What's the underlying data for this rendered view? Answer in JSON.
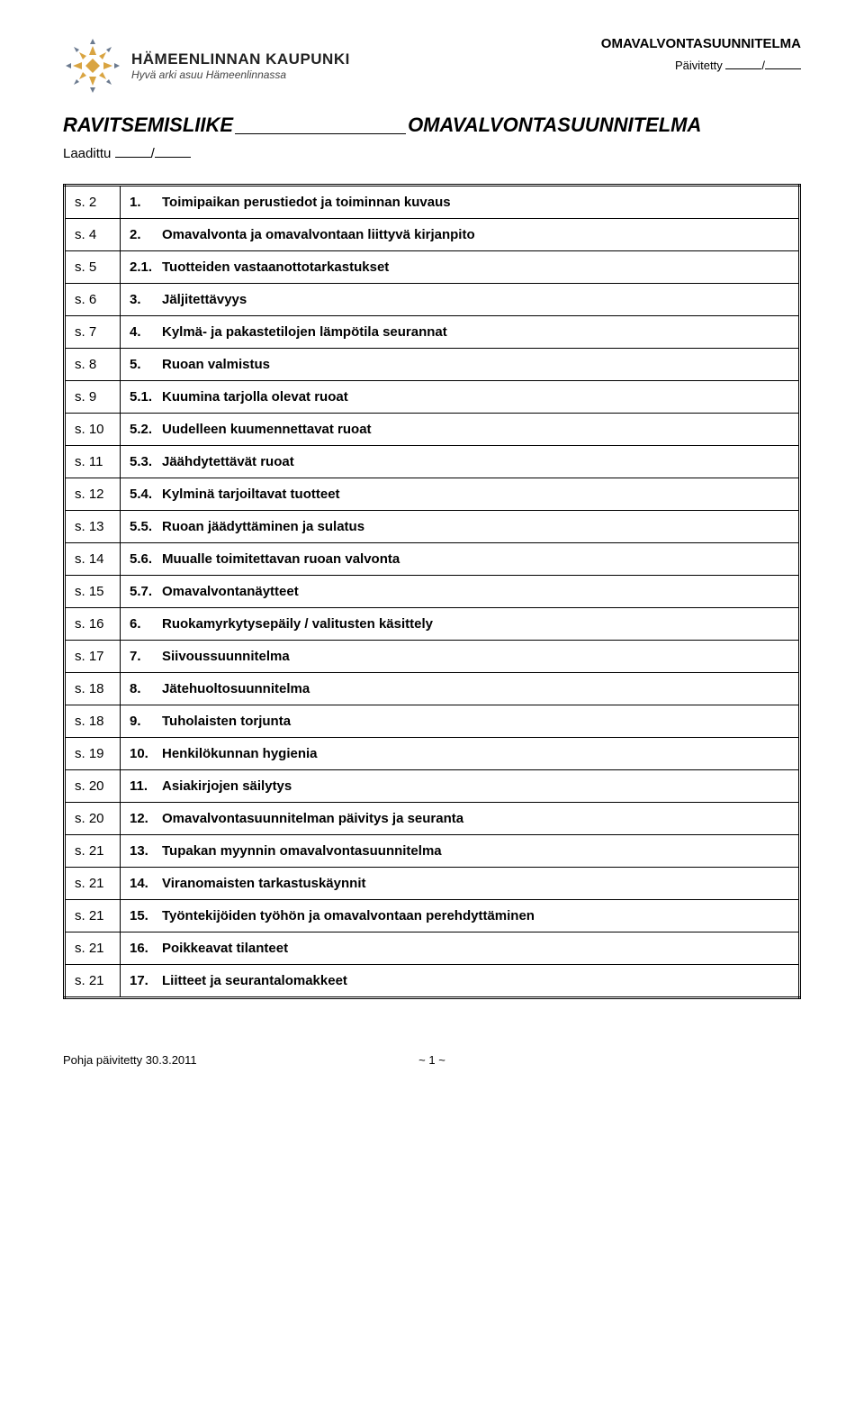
{
  "header": {
    "org_name": "HÄMEENLINNAN KAUPUNKI",
    "tagline": "Hyvä arki asuu Hämeenlinnassa",
    "doc_title_top": "OMAVALVONTASUUNNITELMA",
    "updated_label": "Päivitetty",
    "logo": {
      "primary_color": "#d9a441",
      "accent_color": "#6b7a8f"
    }
  },
  "title": {
    "left": "RAVITSEMISLIIKE",
    "right": "OMAVALVONTASUUNNITELMA"
  },
  "laadittu_label": "Laadittu",
  "toc": [
    {
      "page": "s. 2",
      "num": "1.",
      "text": "Toimipaikan perustiedot ja toiminnan kuvaus"
    },
    {
      "page": "s. 4",
      "num": "2.",
      "text": "Omavalvonta ja omavalvontaan liittyvä kirjanpito"
    },
    {
      "page": "s. 5",
      "num": "2.1.",
      "text": "Tuotteiden vastaanottotarkastukset"
    },
    {
      "page": "s. 6",
      "num": "3.",
      "text": "Jäljitettävyys"
    },
    {
      "page": "s. 7",
      "num": "4.",
      "text": "Kylmä- ja pakastetilojen lämpötila seurannat"
    },
    {
      "page": "s. 8",
      "num": "5.",
      "text": "Ruoan valmistus"
    },
    {
      "page": "s. 9",
      "num": "5.1.",
      "text": "Kuumina tarjolla olevat ruoat"
    },
    {
      "page": "s. 10",
      "num": "5.2.",
      "text": "Uudelleen kuumennettavat ruoat"
    },
    {
      "page": "s. 11",
      "num": "5.3.",
      "text": "Jäähdytettävät ruoat"
    },
    {
      "page": "s. 12",
      "num": "5.4.",
      "text": "Kylminä tarjoiltavat tuotteet"
    },
    {
      "page": "s. 13",
      "num": "5.5.",
      "text": "Ruoan jäädyttäminen ja sulatus"
    },
    {
      "page": "s. 14",
      "num": "5.6.",
      "text": "Muualle toimitettavan ruoan valvonta"
    },
    {
      "page": "s. 15",
      "num": "5.7.",
      "text": "Omavalvontanäytteet"
    },
    {
      "page": "s. 16",
      "num": "6.",
      "text": "Ruokamyrkytysepäily / valitusten käsittely"
    },
    {
      "page": "s. 17",
      "num": "7.",
      "text": "Siivoussuunnitelma"
    },
    {
      "page": "s. 18",
      "num": "8.",
      "text": "Jätehuoltosuunnitelma"
    },
    {
      "page": "s. 18",
      "num": "9.",
      "text": "Tuholaisten torjunta"
    },
    {
      "page": "s. 19",
      "num": "10.",
      "text": "Henkilökunnan hygienia"
    },
    {
      "page": "s. 20",
      "num": "11.",
      "text": "Asiakirjojen säilytys"
    },
    {
      "page": "s. 20",
      "num": "12.",
      "text": "Omavalvontasuunnitelman päivitys ja seuranta"
    },
    {
      "page": "s. 21",
      "num": "13.",
      "text": "Tupakan myynnin omavalvontasuunnitelma"
    },
    {
      "page": "s. 21",
      "num": "14.",
      "text": "Viranomaisten tarkastuskäynnit"
    },
    {
      "page": "s. 21",
      "num": "15.",
      "text": "Työntekijöiden työhön ja omavalvontaan perehdyttäminen"
    },
    {
      "page": "s. 21",
      "num": "16.",
      "text": "Poikkeavat tilanteet"
    },
    {
      "page": "s. 21",
      "num": "17.",
      "text": "Liitteet ja seurantalomakkeet"
    }
  ],
  "footer": {
    "left": "Pohja päivitetty 30.3.2011",
    "center": "~ 1 ~"
  }
}
